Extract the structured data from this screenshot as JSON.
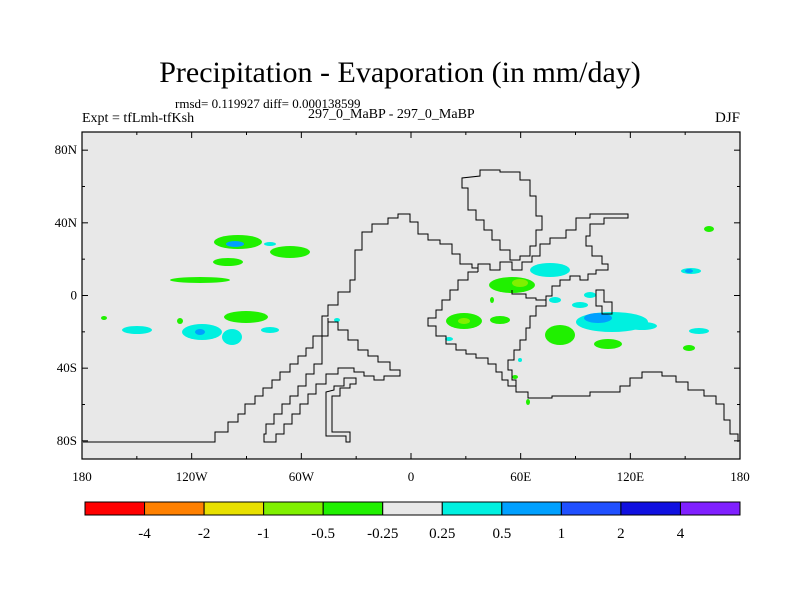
{
  "title": "Precipitation - Evaporation (in mm/day)",
  "stats": "rmsd= 0.119927 diff= 0.000138599",
  "experiment": "Expt = tfLmh-tfKsh",
  "runs": "297_0_MaBP - 297_0_MaBP",
  "season": "DJF",
  "lon_ticks": [
    "180",
    "120W",
    "60W",
    "0",
    "60E",
    "120E",
    "180"
  ],
  "lat_ticks": [
    "80N",
    "40N",
    "0",
    "40S",
    "80S"
  ],
  "colorbar": {
    "labels": [
      "-4",
      "-2",
      "-1",
      "-0.5",
      "-0.25",
      "0.25",
      "0.5",
      "1",
      "2",
      "4"
    ],
    "colors": [
      "#ff0000",
      "#ff8000",
      "#e8e000",
      "#80f000",
      "#20f000",
      "#e8e8e8",
      "#00f0e0",
      "#00a0ff",
      "#2050ff",
      "#1010e0",
      "#8020ff"
    ]
  },
  "colors": {
    "background": "#e8e8e8",
    "coast": "#000000",
    "positive_light": "#00f0e0",
    "positive_mid": "#00a0ff",
    "negative_light": "#20f000",
    "negative_mid": "#80f000"
  }
}
